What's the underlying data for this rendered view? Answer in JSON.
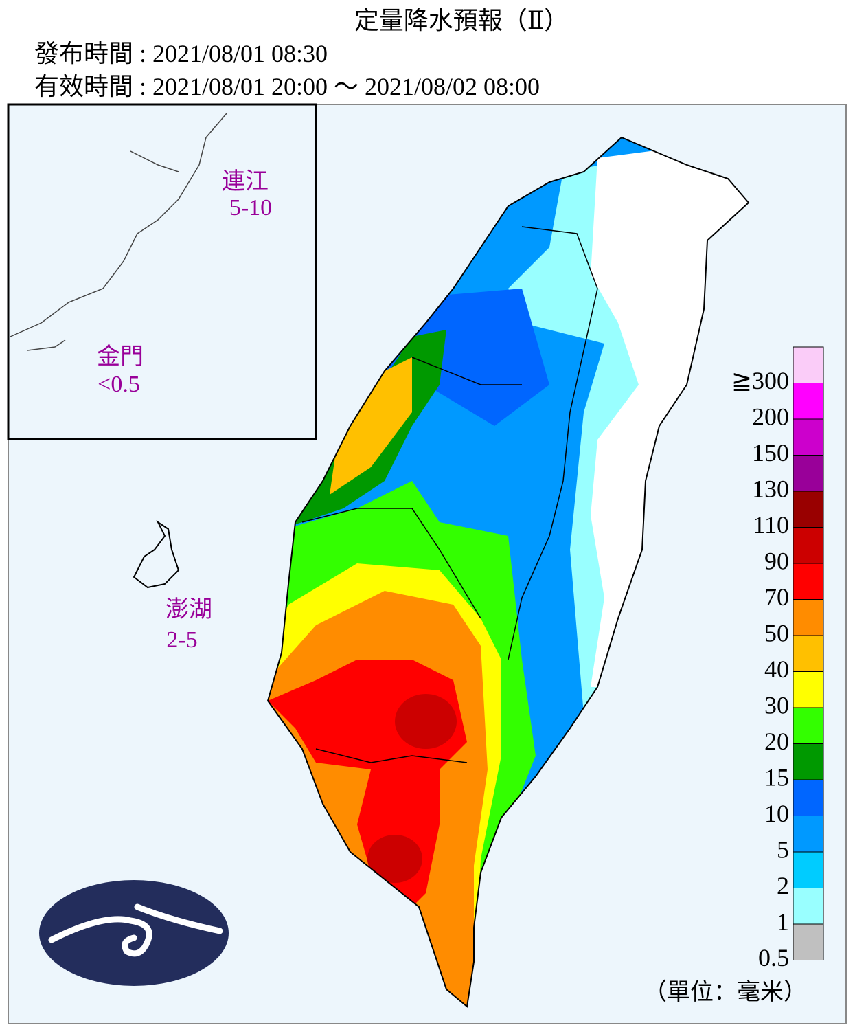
{
  "header": {
    "title": "定量降水預報（Ⅱ）",
    "issued": "發布時間 : 2021/08/01 08:30",
    "valid": "有效時間 : 2021/08/01 20:00 ～ 2021/08/02 08:00"
  },
  "islands": [
    {
      "name": "連江",
      "amount": "5-10"
    },
    {
      "name": "金門",
      "amount": "<0.5"
    },
    {
      "name": "澎湖",
      "amount": "2-5"
    }
  ],
  "legend": {
    "colors": [
      "#FACCF8",
      "#FF00FF",
      "#CC00CC",
      "#990099",
      "#990000",
      "#CC0000",
      "#FF0000",
      "#FF8C00",
      "#FFC000",
      "#FFFF00",
      "#33FF00",
      "#009900",
      "#0066FF",
      "#0099FF",
      "#00CCFF",
      "#99FFFF",
      "#C0C0C0"
    ],
    "labels": [
      "≧300",
      "200",
      "150",
      "130",
      "110",
      "90",
      "70",
      "50",
      "40",
      "30",
      "20",
      "15",
      "10",
      "5",
      "2",
      "1",
      "0.5"
    ],
    "unit": "（單位：毫米）"
  }
}
